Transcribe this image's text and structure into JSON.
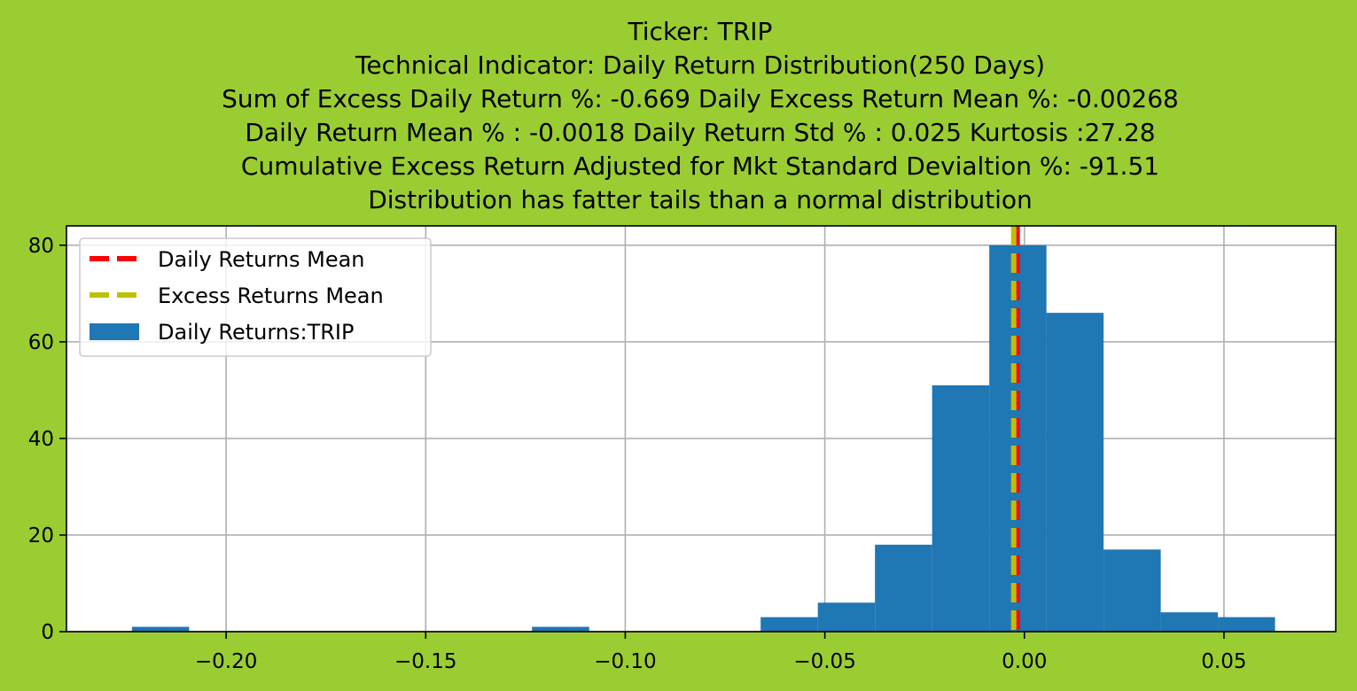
{
  "chart_data": {
    "type": "bar",
    "title_lines": [
      "Ticker: TRIP",
      "Technical Indicator: Daily Return Distribution(250 Days)",
      "Sum of Excess Daily Return %: -0.669   Daily Excess Return Mean %: -0.00268",
      "Daily Return Mean % : -0.0018    Daily Return Std % : 0.025  Kurtosis :27.28",
      "Cumulative Excess Return Adjusted for Mkt Standard Devialtion %: -91.51",
      "Distribution has fatter tails than a normal distribution"
    ],
    "xlabel": "",
    "ylabel": "",
    "xlim": [
      -0.24,
      0.078
    ],
    "ylim": [
      0,
      84
    ],
    "x_ticks": [
      -0.2,
      -0.15,
      -0.1,
      -0.05,
      0.0,
      0.05
    ],
    "x_tick_labels": [
      "−0.20",
      "−0.15",
      "−0.10",
      "−0.05",
      "0.00",
      "0.05"
    ],
    "y_ticks": [
      0,
      20,
      40,
      60,
      80
    ],
    "y_tick_labels": [
      "0",
      "20",
      "40",
      "60",
      "80"
    ],
    "grid": true,
    "legend_placement": "upper-left",
    "histogram": {
      "name": "Daily Returns:TRIP",
      "color": "#1f77b4",
      "bin_start": -0.2236,
      "bin_width": 0.01432,
      "counts": [
        1,
        0,
        0,
        0,
        0,
        0,
        0,
        1,
        0,
        0,
        0,
        3,
        6,
        18,
        51,
        80,
        66,
        17,
        4,
        3
      ]
    },
    "vlines": [
      {
        "name": "Daily Returns Mean",
        "x": -0.0018,
        "color": "#ff0000"
      },
      {
        "name": "Excess Returns Mean",
        "x": -0.00268,
        "color": "#bfbf00"
      }
    ],
    "legend": [
      {
        "label": "Daily Returns Mean",
        "kind": "dash",
        "color": "#ff0000"
      },
      {
        "label": "Excess Returns Mean",
        "kind": "dash",
        "color": "#bfbf00"
      },
      {
        "label": "Daily Returns:TRIP",
        "kind": "patch",
        "color": "#1f77b4"
      }
    ],
    "colors": {
      "background": "#9acd32",
      "axes": "#ffffff",
      "grid": "#b0b0b0"
    }
  }
}
